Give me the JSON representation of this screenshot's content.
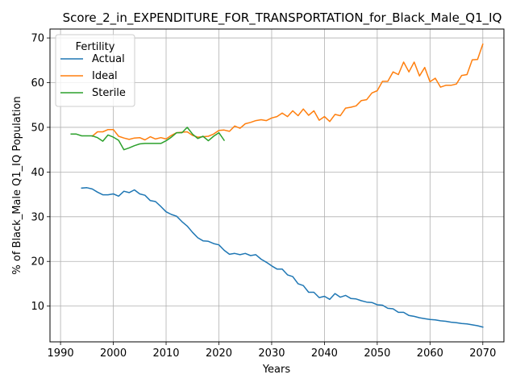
{
  "chart_data": {
    "type": "line",
    "title": "Score_2_in_EXPENDITURE_FOR_TRANSPORTATION_for_Black_Male_Q1_IQ",
    "xlabel": "Years",
    "ylabel": "% of Black_Male Q1_IQ Population",
    "xlim": [
      1988,
      2074
    ],
    "ylim": [
      2,
      72
    ],
    "xticks": [
      1990,
      2000,
      2010,
      2020,
      2030,
      2040,
      2050,
      2060,
      2070
    ],
    "yticks": [
      10,
      20,
      30,
      40,
      50,
      60,
      70
    ],
    "grid": true,
    "legend": {
      "title": "Fertility",
      "position": "top-left"
    },
    "series": [
      {
        "name": "Actual",
        "color": "#1f77b4",
        "x": [
          1994,
          1995,
          1996,
          1997,
          1998,
          1999,
          2000,
          2001,
          2002,
          2003,
          2004,
          2005,
          2006,
          2007,
          2008,
          2009,
          2010,
          2011,
          2012,
          2013,
          2014,
          2015,
          2016,
          2017,
          2018,
          2019,
          2020,
          2021,
          2022,
          2023,
          2024,
          2025,
          2026,
          2027,
          2028,
          2029,
          2030,
          2031,
          2032,
          2033,
          2034,
          2035,
          2036,
          2037,
          2038,
          2039,
          2040,
          2041,
          2042,
          2043,
          2044,
          2045,
          2046,
          2047,
          2048,
          2049,
          2050,
          2051,
          2052,
          2053,
          2054,
          2055,
          2056,
          2057,
          2058,
          2059,
          2060,
          2061,
          2062,
          2063,
          2064,
          2065,
          2066,
          2067,
          2068,
          2069,
          2070
        ],
        "values": [
          36.4,
          36.5,
          36.2,
          35.5,
          34.9,
          34.9,
          35.1,
          34.6,
          35.7,
          35.4,
          36.0,
          35.1,
          34.8,
          33.6,
          33.4,
          32.3,
          31.1,
          30.5,
          30.1,
          28.9,
          27.9,
          26.5,
          25.3,
          24.6,
          24.5,
          24.0,
          23.7,
          22.5,
          21.6,
          21.8,
          21.5,
          21.8,
          21.3,
          21.5,
          20.5,
          19.8,
          19.0,
          18.3,
          18.3,
          17.0,
          16.6,
          15.0,
          14.6,
          13.1,
          13.1,
          11.9,
          12.2,
          11.5,
          12.8,
          12.0,
          12.4,
          11.7,
          11.6,
          11.2,
          10.9,
          10.8,
          10.3,
          10.2,
          9.5,
          9.4,
          8.6,
          8.6,
          7.9,
          7.7,
          7.4,
          7.2,
          7.0,
          6.9,
          6.7,
          6.6,
          6.4,
          6.3,
          6.1,
          6.0,
          5.8,
          5.6,
          5.3
        ]
      },
      {
        "name": "Ideal",
        "color": "#ff7f0e",
        "x": [
          1996,
          1997,
          1998,
          1999,
          2000,
          2001,
          2002,
          2003,
          2004,
          2005,
          2006,
          2007,
          2008,
          2009,
          2010,
          2011,
          2012,
          2013,
          2014,
          2015,
          2016,
          2017,
          2018,
          2019,
          2020,
          2021,
          2022,
          2023,
          2024,
          2025,
          2026,
          2027,
          2028,
          2029,
          2030,
          2031,
          2032,
          2033,
          2034,
          2035,
          2036,
          2037,
          2038,
          2039,
          2040,
          2041,
          2042,
          2043,
          2044,
          2045,
          2046,
          2047,
          2048,
          2049,
          2050,
          2051,
          2052,
          2053,
          2054,
          2055,
          2056,
          2057,
          2058,
          2059,
          2060,
          2061,
          2062,
          2063,
          2064,
          2065,
          2066,
          2067,
          2068,
          2069,
          2070
        ],
        "values": [
          48.0,
          49.0,
          49.0,
          49.5,
          49.5,
          48.0,
          47.6,
          47.3,
          47.6,
          47.7,
          47.2,
          47.9,
          47.4,
          47.7,
          47.4,
          48.2,
          48.8,
          48.9,
          49.0,
          48.2,
          47.8,
          47.9,
          48.0,
          48.5,
          49.3,
          49.4,
          49.1,
          50.3,
          49.8,
          50.8,
          51.1,
          51.5,
          51.7,
          51.5,
          52.1,
          52.4,
          53.2,
          52.4,
          53.7,
          52.6,
          54.1,
          52.7,
          53.7,
          51.6,
          52.4,
          51.3,
          52.9,
          52.6,
          54.3,
          54.5,
          54.8,
          56.0,
          56.2,
          57.7,
          58.2,
          60.3,
          60.3,
          62.4,
          61.8,
          64.6,
          62.4,
          64.6,
          61.5,
          63.4,
          60.2,
          61.0,
          59.0,
          59.4,
          59.4,
          59.7,
          61.6,
          61.8,
          65.1,
          65.2,
          68.6
        ]
      },
      {
        "name": "Sterile",
        "color": "#2ca02c",
        "x": [
          1992,
          1993,
          1994,
          1995,
          1996,
          1997,
          1998,
          1999,
          2000,
          2001,
          2002,
          2003,
          2004,
          2005,
          2006,
          2007,
          2008,
          2009,
          2010,
          2011,
          2012,
          2013,
          2014,
          2015,
          2016,
          2017,
          2018,
          2019,
          2020,
          2021
        ],
        "values": [
          48.5,
          48.5,
          48.1,
          48.1,
          48.1,
          47.7,
          46.9,
          48.3,
          47.8,
          47.1,
          45.0,
          45.4,
          45.9,
          46.3,
          46.4,
          46.4,
          46.4,
          46.4,
          47.0,
          47.8,
          48.8,
          48.8,
          50.0,
          48.5,
          47.5,
          48.0,
          47.0,
          48.0,
          48.8,
          47.1
        ]
      }
    ]
  }
}
